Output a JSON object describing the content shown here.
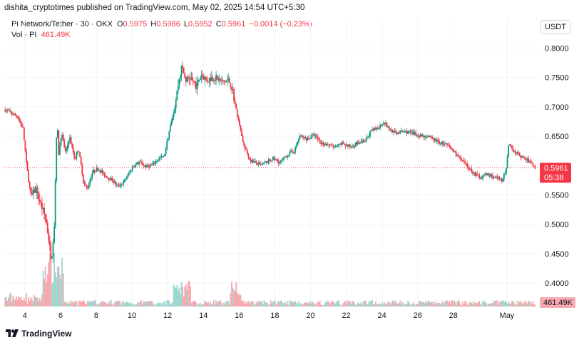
{
  "header": {
    "published_text": "dishita_cryptotimes published on TradingView.com, May 02, 2025 14:54 UTC+5:30"
  },
  "legend": {
    "symbol": "Pi Network/Tether · 30 · OKX",
    "o_label": "O",
    "o_value": "0.5975",
    "h_label": "H",
    "h_value": "0.5986",
    "l_label": "L",
    "l_value": "0.5952",
    "c_label": "C",
    "c_value": "0.5961",
    "change": "−0.0014 (−0.23%)",
    "vol_label": "Vol · PI",
    "vol_value": "461.49K"
  },
  "currency_button": "USDT",
  "price_tag": {
    "price": "0.5961",
    "countdown": "05:38"
  },
  "volume_tag": "461.49K",
  "footer": {
    "logo_text": "TradingView"
  },
  "colors": {
    "up": "#089981",
    "down": "#f23645",
    "up_vol": "#9fd8cf",
    "down_vol": "#f7a9b0",
    "grid": "#f0f3fa"
  },
  "chart_data": {
    "type": "candlestick",
    "ylim": [
      0.36,
      0.815
    ],
    "y_ticks": [
      "0.8000",
      "0.7500",
      "0.7000",
      "0.6500",
      "0.6000",
      "0.5500",
      "0.5000",
      "0.4500",
      "0.4000"
    ],
    "y_tick_values": [
      0.8,
      0.75,
      0.7,
      0.65,
      0.6,
      0.55,
      0.5,
      0.45,
      0.4
    ],
    "x_ticks": [
      "4",
      "6",
      "8",
      "10",
      "12",
      "14",
      "16",
      "18",
      "20",
      "22",
      "24",
      "26",
      "28",
      "May"
    ],
    "x_tick_days": [
      4,
      6,
      8,
      10,
      12,
      14,
      16,
      18,
      20,
      22,
      24,
      26,
      28,
      31
    ],
    "x_range_days": [
      2.85,
      32.8
    ],
    "last_price": 0.5961,
    "price_path": [
      [
        2.9,
        0.695
      ],
      [
        3.3,
        0.688
      ],
      [
        3.6,
        0.683
      ],
      [
        3.9,
        0.663
      ],
      [
        4.1,
        0.6
      ],
      [
        4.35,
        0.545
      ],
      [
        4.6,
        0.562
      ],
      [
        4.8,
        0.543
      ],
      [
        5.0,
        0.525
      ],
      [
        5.2,
        0.505
      ],
      [
        5.4,
        0.46
      ],
      [
        5.5,
        0.44
      ],
      [
        5.65,
        0.5
      ],
      [
        5.8,
        0.68
      ],
      [
        5.9,
        0.62
      ],
      [
        6.05,
        0.655
      ],
      [
        6.3,
        0.62
      ],
      [
        6.5,
        0.65
      ],
      [
        6.8,
        0.61
      ],
      [
        7.0,
        0.63
      ],
      [
        7.3,
        0.57
      ],
      [
        7.5,
        0.56
      ],
      [
        7.8,
        0.59
      ],
      [
        8.1,
        0.595
      ],
      [
        8.5,
        0.583
      ],
      [
        8.9,
        0.575
      ],
      [
        9.2,
        0.565
      ],
      [
        9.5,
        0.57
      ],
      [
        9.8,
        0.585
      ],
      [
        10.1,
        0.6
      ],
      [
        10.4,
        0.605
      ],
      [
        10.8,
        0.598
      ],
      [
        11.2,
        0.602
      ],
      [
        11.5,
        0.612
      ],
      [
        11.8,
        0.615
      ],
      [
        12.1,
        0.66
      ],
      [
        12.4,
        0.7
      ],
      [
        12.6,
        0.74
      ],
      [
        12.8,
        0.77
      ],
      [
        13.0,
        0.745
      ],
      [
        13.3,
        0.75
      ],
      [
        13.6,
        0.735
      ],
      [
        13.9,
        0.755
      ],
      [
        14.2,
        0.745
      ],
      [
        14.5,
        0.75
      ],
      [
        14.8,
        0.748
      ],
      [
        15.1,
        0.742
      ],
      [
        15.4,
        0.745
      ],
      [
        15.6,
        0.735
      ],
      [
        15.8,
        0.7
      ],
      [
        16.0,
        0.67
      ],
      [
        16.3,
        0.63
      ],
      [
        16.6,
        0.61
      ],
      [
        16.9,
        0.605
      ],
      [
        17.2,
        0.6
      ],
      [
        17.5,
        0.605
      ],
      [
        17.9,
        0.612
      ],
      [
        18.3,
        0.605
      ],
      [
        18.7,
        0.618
      ],
      [
        19.1,
        0.625
      ],
      [
        19.4,
        0.65
      ],
      [
        19.8,
        0.645
      ],
      [
        20.2,
        0.652
      ],
      [
        20.6,
        0.638
      ],
      [
        21.0,
        0.635
      ],
      [
        21.4,
        0.63
      ],
      [
        21.8,
        0.638
      ],
      [
        22.2,
        0.632
      ],
      [
        22.6,
        0.638
      ],
      [
        23.0,
        0.64
      ],
      [
        23.4,
        0.658
      ],
      [
        23.8,
        0.665
      ],
      [
        24.1,
        0.675
      ],
      [
        24.4,
        0.662
      ],
      [
        24.8,
        0.655
      ],
      [
        25.2,
        0.658
      ],
      [
        25.6,
        0.656
      ],
      [
        26.0,
        0.652
      ],
      [
        26.4,
        0.65
      ],
      [
        26.8,
        0.646
      ],
      [
        27.2,
        0.64
      ],
      [
        27.6,
        0.635
      ],
      [
        28.0,
        0.625
      ],
      [
        28.4,
        0.61
      ],
      [
        28.8,
        0.598
      ],
      [
        29.2,
        0.585
      ],
      [
        29.5,
        0.58
      ],
      [
        29.9,
        0.585
      ],
      [
        30.3,
        0.58
      ],
      [
        30.7,
        0.575
      ],
      [
        30.95,
        0.59
      ],
      [
        31.1,
        0.635
      ],
      [
        31.4,
        0.625
      ],
      [
        31.8,
        0.615
      ],
      [
        32.2,
        0.608
      ],
      [
        32.6,
        0.5961
      ]
    ]
  }
}
